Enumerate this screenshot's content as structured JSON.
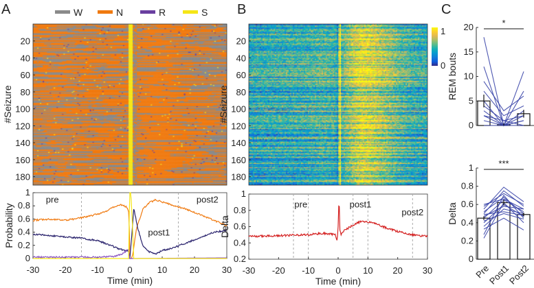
{
  "panels": {
    "a": "A",
    "b": "B",
    "c": "C"
  },
  "chart_data": [
    {
      "id": "A-heatmap",
      "type": "heatmap",
      "ylabel": "#Seizure",
      "yticks": [
        "20",
        "40",
        "60",
        "80",
        "100",
        "120",
        "140",
        "160",
        "180"
      ],
      "rows": 190,
      "legend": [
        {
          "label": "W",
          "color": "#8a8a8a"
        },
        {
          "label": "N",
          "color": "#f07a10"
        },
        {
          "label": "R",
          "color": "#6a3fa0"
        },
        {
          "label": "S",
          "color": "#f5e617"
        }
      ]
    },
    {
      "id": "A-line",
      "type": "line",
      "xlabel": "Time (min)",
      "ylabel": "Probability",
      "xlim": [
        -30,
        30
      ],
      "ylim": [
        0,
        1
      ],
      "xticks": [
        "-30",
        "-20",
        "-10",
        "0",
        "10",
        "20",
        "30"
      ],
      "yticks": [
        "0",
        "0.2",
        "0.4",
        "0.6",
        "0.8",
        "1"
      ],
      "dashed_x": [
        -15,
        15
      ],
      "annotations": [
        {
          "text": "pre",
          "x": -24,
          "y": 0.9
        },
        {
          "text": "post1",
          "x": 9,
          "y": 0.4
        },
        {
          "text": "post2",
          "x": 24,
          "y": 0.9
        }
      ],
      "series": [
        {
          "name": "N",
          "color": "#f07a10",
          "x": [
            -30,
            -25,
            -20,
            -15,
            -12,
            -8,
            -5,
            -3,
            -1,
            -0.3,
            0,
            0.5,
            1,
            2,
            4,
            6,
            8,
            10,
            14,
            18,
            22,
            26,
            30
          ],
          "y": [
            0.58,
            0.6,
            0.58,
            0.62,
            0.65,
            0.7,
            0.78,
            0.82,
            0.78,
            0.7,
            0.0,
            0.0,
            0.1,
            0.45,
            0.75,
            0.85,
            0.89,
            0.86,
            0.8,
            0.74,
            0.66,
            0.58,
            0.5
          ]
        },
        {
          "name": "W",
          "color": "#27206b",
          "x": [
            -30,
            -25,
            -20,
            -15,
            -10,
            -6,
            -3,
            -1,
            -0.3,
            0,
            0.5,
            1.2,
            2.5,
            4,
            6,
            8,
            10,
            14,
            18,
            22,
            26,
            30
          ],
          "y": [
            0.37,
            0.35,
            0.33,
            0.31,
            0.27,
            0.2,
            0.14,
            0.12,
            0.09,
            0.0,
            0.3,
            0.76,
            0.45,
            0.2,
            0.1,
            0.07,
            0.12,
            0.17,
            0.25,
            0.32,
            0.4,
            0.43
          ]
        },
        {
          "name": "R",
          "color": "#8a55c0",
          "x": [
            -30,
            -20,
            -10,
            -5,
            -2,
            -0.5,
            0,
            1,
            30
          ],
          "y": [
            0.02,
            0.02,
            0.02,
            0.03,
            0.08,
            0.14,
            0.0,
            0.0,
            0.01
          ]
        },
        {
          "name": "S",
          "color": "#f5e617",
          "x": [
            -30,
            -0.4,
            -0.1,
            0.3,
            0.7,
            1.2,
            30
          ],
          "y": [
            0,
            0,
            1,
            1,
            0.6,
            0,
            0
          ]
        }
      ]
    },
    {
      "id": "B-heatmap",
      "type": "heatmap",
      "ylabel": "#Seizure",
      "yticks": [
        "20",
        "40",
        "60",
        "80",
        "100",
        "120",
        "140",
        "160",
        "180"
      ],
      "rows": 190,
      "colorbar": {
        "min_label": "0",
        "max_label": "1"
      }
    },
    {
      "id": "B-line",
      "type": "line",
      "xlabel": "Time (min)",
      "ylabel": "Delta",
      "xlim": [
        -30,
        30
      ],
      "ylim": [
        0.2,
        1
      ],
      "xticks": [
        "-30",
        "-20",
        "-10",
        "0",
        "10",
        "20",
        "30"
      ],
      "yticks": [
        "0.2",
        "0.4",
        "0.6",
        "0.8",
        "1"
      ],
      "dashed_x": [
        -15,
        -10,
        5,
        10,
        25
      ],
      "annotations": [
        {
          "text": "pre",
          "x": -12.5,
          "y": 0.88
        },
        {
          "text": "post1",
          "x": 7.5,
          "y": 0.88
        },
        {
          "text": "post2",
          "x": 25,
          "y": 0.78
        }
      ],
      "series": [
        {
          "name": "Delta",
          "color": "#d42020",
          "x": [
            -30,
            -20,
            -10,
            -5,
            -1,
            -0.3,
            0,
            0.3,
            0.6,
            1,
            2,
            5,
            8,
            12,
            15,
            20,
            25,
            30
          ],
          "y": [
            0.48,
            0.49,
            0.5,
            0.52,
            0.5,
            0.42,
            0.6,
            0.98,
            0.55,
            0.5,
            0.55,
            0.62,
            0.67,
            0.64,
            0.6,
            0.54,
            0.5,
            0.48
          ]
        }
      ]
    },
    {
      "id": "C-rem",
      "type": "bar",
      "ylabel": "REM bouts",
      "ylim": [
        0,
        20
      ],
      "categories": [
        "Pre",
        "Post1",
        "Post2"
      ],
      "values": [
        5,
        0.2,
        2.4
      ],
      "errors": [
        1.3,
        0.2,
        0.8
      ],
      "yticks": [
        "0",
        "5",
        "10",
        "15",
        "20"
      ],
      "significance": "*",
      "subjects": [
        [
          18,
          0,
          11
        ],
        [
          12,
          0,
          7
        ],
        [
          9,
          3,
          6
        ],
        [
          7,
          2,
          4
        ],
        [
          5,
          0,
          3
        ],
        [
          4,
          1,
          2
        ],
        [
          3,
          0,
          2
        ],
        [
          2,
          0,
          1
        ],
        [
          1,
          0,
          1
        ],
        [
          0,
          0,
          0
        ],
        [
          2,
          1,
          0
        ]
      ]
    },
    {
      "id": "C-delta",
      "type": "bar",
      "ylabel": "Delta",
      "ylim": [
        0,
        1
      ],
      "categories": [
        "Pre",
        "Post1",
        "Post2"
      ],
      "values": [
        0.45,
        0.62,
        0.49
      ],
      "errors": [
        0.02,
        0.03,
        0.02
      ],
      "yticks": [
        "0",
        "0.2",
        "0.4",
        "0.6",
        "0.8",
        "1"
      ],
      "significance": "***",
      "subjects": [
        [
          0.23,
          0.62,
          0.4
        ],
        [
          0.27,
          0.7,
          0.45
        ],
        [
          0.33,
          0.45,
          0.32
        ],
        [
          0.36,
          0.55,
          0.5
        ],
        [
          0.4,
          0.6,
          0.47
        ],
        [
          0.42,
          0.5,
          0.44
        ],
        [
          0.45,
          0.65,
          0.52
        ],
        [
          0.47,
          0.58,
          0.55
        ],
        [
          0.49,
          0.52,
          0.48
        ],
        [
          0.5,
          0.75,
          0.58
        ],
        [
          0.52,
          0.68,
          0.5
        ],
        [
          0.55,
          0.79,
          0.63
        ],
        [
          0.58,
          0.72,
          0.6
        ],
        [
          0.6,
          0.66,
          0.55
        ]
      ]
    }
  ]
}
